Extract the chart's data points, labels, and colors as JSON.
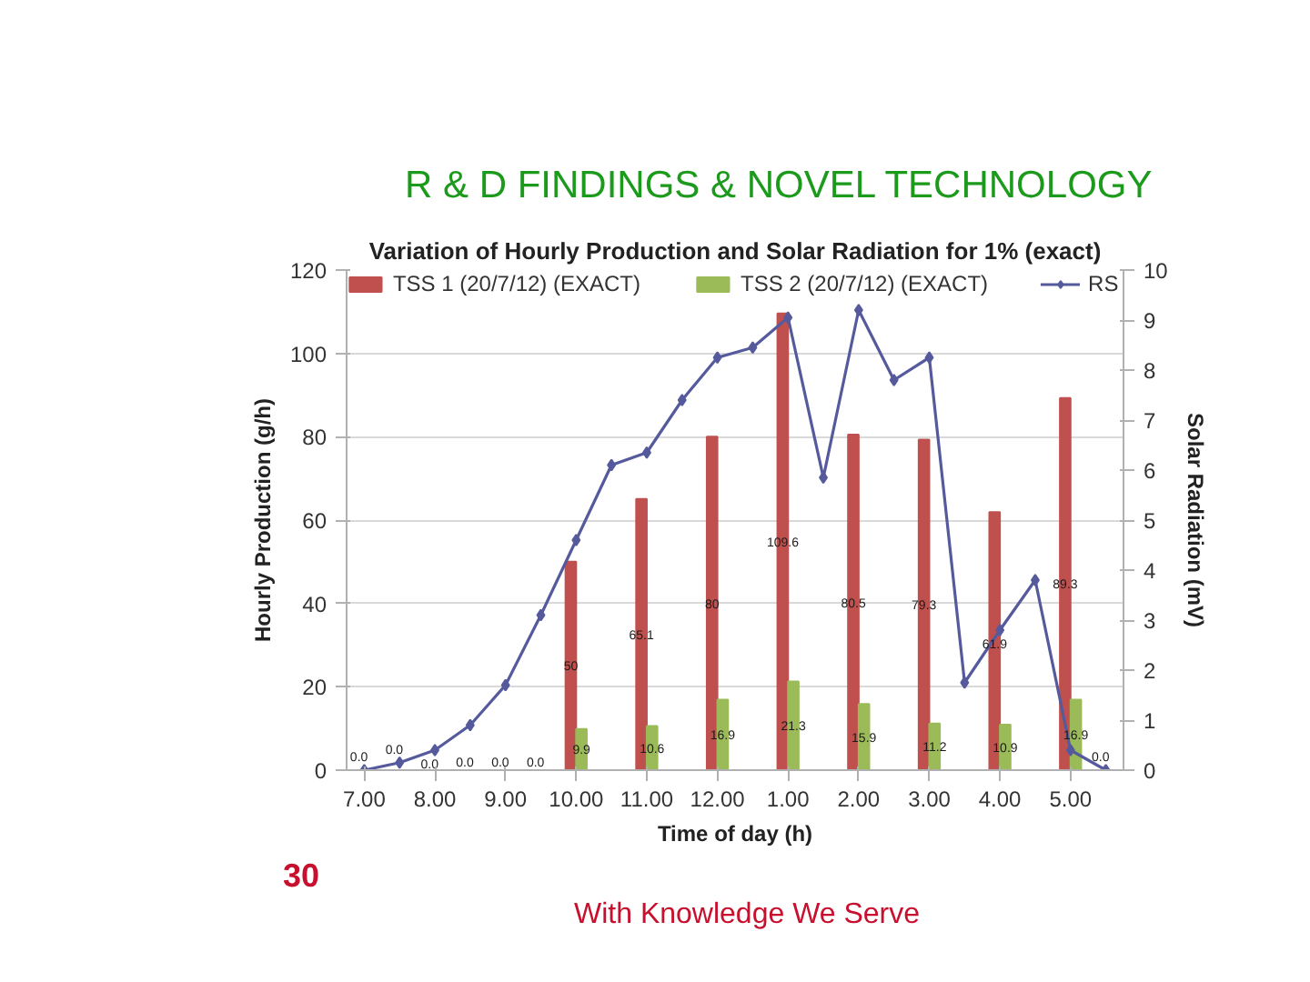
{
  "chart_data": {
    "type": "bar",
    "title": "Variation of Hourly Production and Solar Radiation for 1% (exact)",
    "xlabel": "Time of day (h)",
    "ylabel": "Hourly Production (g/h)",
    "y2label": "Solar Radiation (mV)",
    "categories": [
      "7.00",
      null,
      "8.00",
      null,
      "9.00",
      null,
      "10.00",
      null,
      "11.00",
      null,
      "12.00",
      null,
      "1.00",
      null,
      "2.00",
      null,
      "3.00",
      null,
      "4.00",
      null,
      "5.00",
      null
    ],
    "series": [
      {
        "name": "TSS 1 (20/7/12) (EXACT)",
        "color": "#c0504d",
        "values": [
          0,
          0,
          0,
          0,
          0,
          0,
          50,
          null,
          65.1,
          null,
          80,
          null,
          109.6,
          null,
          80.5,
          null,
          79.3,
          null,
          61.9,
          null,
          89.3,
          0
        ],
        "value_labels": [
          "0.0",
          "0.0",
          "0.0",
          "0.0",
          "0.0",
          "0.0",
          "50",
          null,
          "65.1",
          null,
          "80",
          null,
          "109.6",
          null,
          "80.5",
          null,
          "79.3",
          null,
          "61.9",
          null,
          "89.3",
          "0.0"
        ]
      },
      {
        "name": "TSS 2 (20/7/12) (EXACT)",
        "color": "#9bbb59",
        "values": [
          null,
          null,
          null,
          null,
          null,
          null,
          9.9,
          null,
          10.6,
          null,
          16.9,
          null,
          21.3,
          null,
          15.9,
          null,
          11.2,
          null,
          10.9,
          null,
          16.9,
          null
        ],
        "value_labels": [
          null,
          null,
          null,
          null,
          null,
          null,
          "9.9",
          null,
          "10.6",
          null,
          "16.9",
          null,
          "21.3",
          null,
          "15.9",
          null,
          "11.2",
          null,
          "10.9",
          null,
          "16.9",
          null
        ]
      },
      {
        "name": "RS",
        "type": "line",
        "axis": "y2",
        "color": "#555a9c",
        "values": [
          0,
          0.15,
          0.4,
          0.9,
          1.7,
          3.1,
          4.6,
          6.1,
          6.35,
          7.4,
          8.25,
          8.45,
          9.05,
          5.85,
          9.2,
          7.8,
          8.25,
          1.75,
          2.8,
          3.8,
          0.4,
          0
        ]
      }
    ],
    "ylim": [
      0,
      120
    ],
    "yticks": [
      0,
      20,
      40,
      60,
      80,
      100,
      120
    ],
    "y2lim": [
      0,
      10
    ],
    "y2ticks": [
      0,
      1,
      2,
      3,
      4,
      5,
      6,
      7,
      8,
      9,
      10
    ],
    "grid": "y",
    "legend": "top",
    "marker": "diamond",
    "annotations": [
      "R & D FINDINGS & NOVEL TECHNOLOGY",
      "30",
      "With Knowledge We Serve"
    ]
  }
}
